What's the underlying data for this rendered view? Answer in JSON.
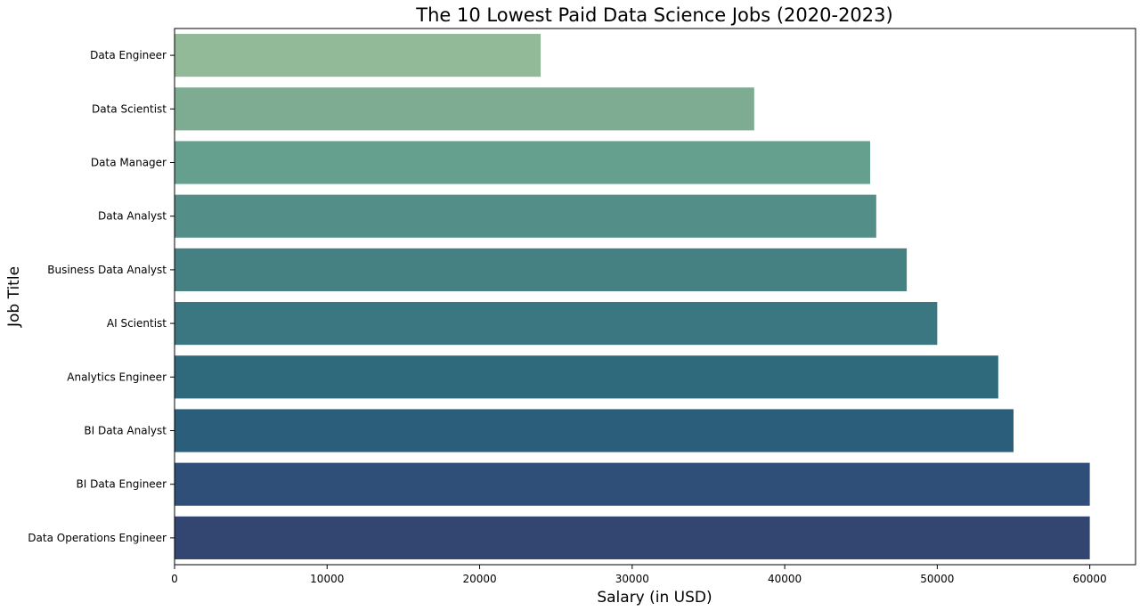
{
  "chart_data": {
    "type": "bar",
    "orientation": "horizontal",
    "title": "The 10 Lowest Paid Data Science Jobs (2020-2023)",
    "xlabel": "Salary (in USD)",
    "ylabel": "Job Title",
    "xlim": [
      0,
      63000
    ],
    "xticks": [
      0,
      10000,
      20000,
      30000,
      40000,
      50000,
      60000
    ],
    "xtick_labels": [
      "0",
      "10000",
      "20000",
      "30000",
      "40000",
      "50000",
      "60000"
    ],
    "grid": false,
    "categories": [
      "Data Engineer",
      "Data Scientist",
      "Data Manager",
      "Data Analyst",
      "Business Data Analyst",
      "AI Scientist",
      "Analytics Engineer",
      "BI Data Analyst",
      "BI Data Engineer",
      "Data Operations Engineer"
    ],
    "values": [
      24000,
      38000,
      45600,
      46000,
      48000,
      50000,
      54000,
      55000,
      60000,
      60000
    ],
    "colors": [
      "#93ba98",
      "#7dac93",
      "#659f8d",
      "#548e88",
      "#458183",
      "#3b7781",
      "#2e6a7b",
      "#2a5e7a",
      "#2f4f78",
      "#334571"
    ]
  }
}
